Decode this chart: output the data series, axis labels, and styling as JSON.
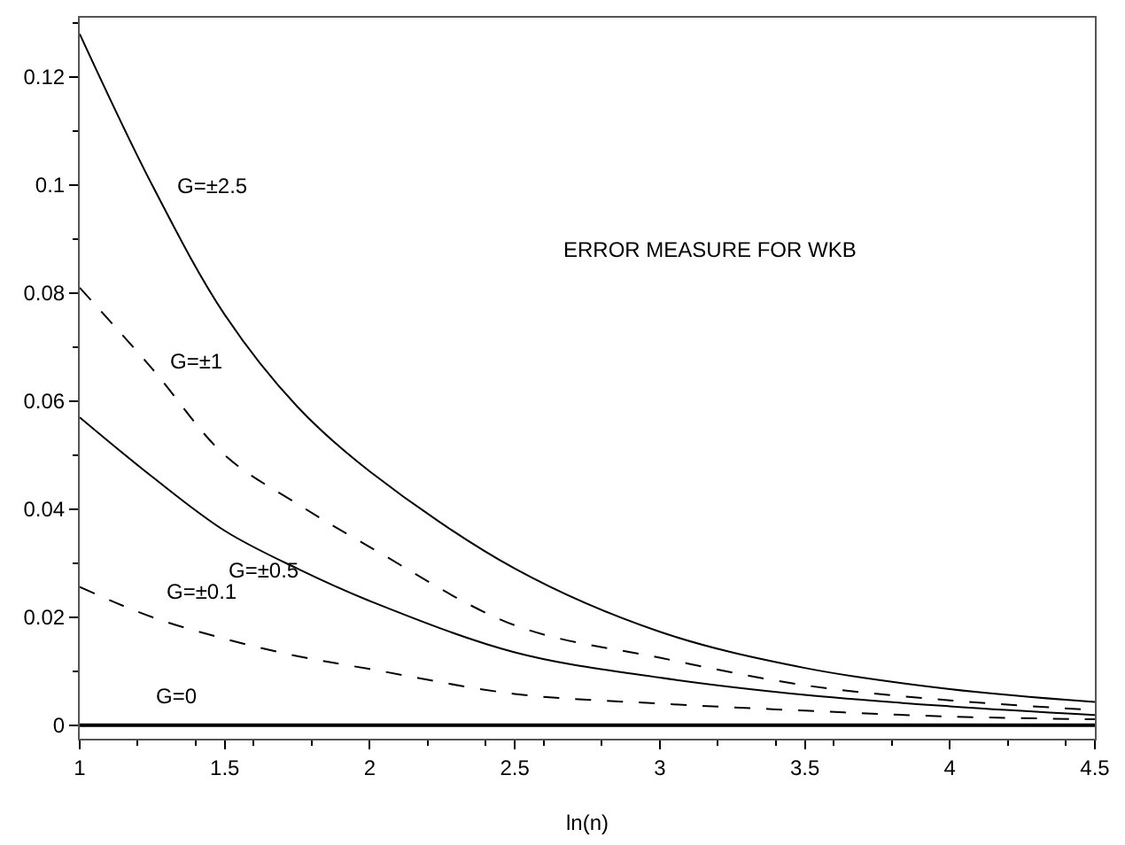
{
  "chart_data": {
    "type": "line",
    "xlabel": "ln(n)",
    "annotations": [
      "ERROR MEASURE FOR WKB"
    ],
    "x": [
      1,
      1.25,
      1.5,
      1.75,
      2,
      2.5,
      3,
      3.5,
      4,
      4.5
    ],
    "series": [
      {
        "name": "G=±2.5",
        "color": "#000000",
        "line_style": "solid",
        "values": [
          0.128,
          0.1,
          0.076,
          0.059,
          0.047,
          0.029,
          0.0173,
          0.0106,
          0.0067,
          0.0043
        ]
      },
      {
        "name": "G=±1",
        "color": "#000000",
        "line_style": "dashed",
        "values": [
          0.081,
          0.066,
          0.05,
          0.041,
          0.033,
          0.0185,
          0.0125,
          0.0074,
          0.0046,
          0.0028
        ]
      },
      {
        "name": "G=±0.5",
        "color": "#000000",
        "line_style": "solid",
        "values": [
          0.057,
          0.046,
          0.036,
          0.029,
          0.023,
          0.0135,
          0.0088,
          0.0056,
          0.0035,
          0.0019
        ]
      },
      {
        "name": "G=±0.1",
        "color": "#000000",
        "line_style": "dashed",
        "values": [
          0.0256,
          0.02,
          0.016,
          0.0128,
          0.0104,
          0.0058,
          0.004,
          0.0027,
          0.0016,
          0.0011
        ]
      },
      {
        "name": "G=0",
        "color": "#000000",
        "line_style": "solid",
        "values": [
          0,
          0,
          0,
          0,
          0,
          0,
          0,
          0,
          0,
          0
        ]
      }
    ],
    "xlim": [
      1,
      4.5
    ],
    "xticks": [
      1,
      1.5,
      2,
      2.5,
      3,
      3.5,
      4,
      4.5
    ],
    "ylim": [
      -0.0025,
      0.131
    ],
    "yticks": [
      0,
      0.02,
      0.04,
      0.06,
      0.08,
      0.1,
      0.12
    ],
    "legend": false,
    "marker": "none"
  }
}
